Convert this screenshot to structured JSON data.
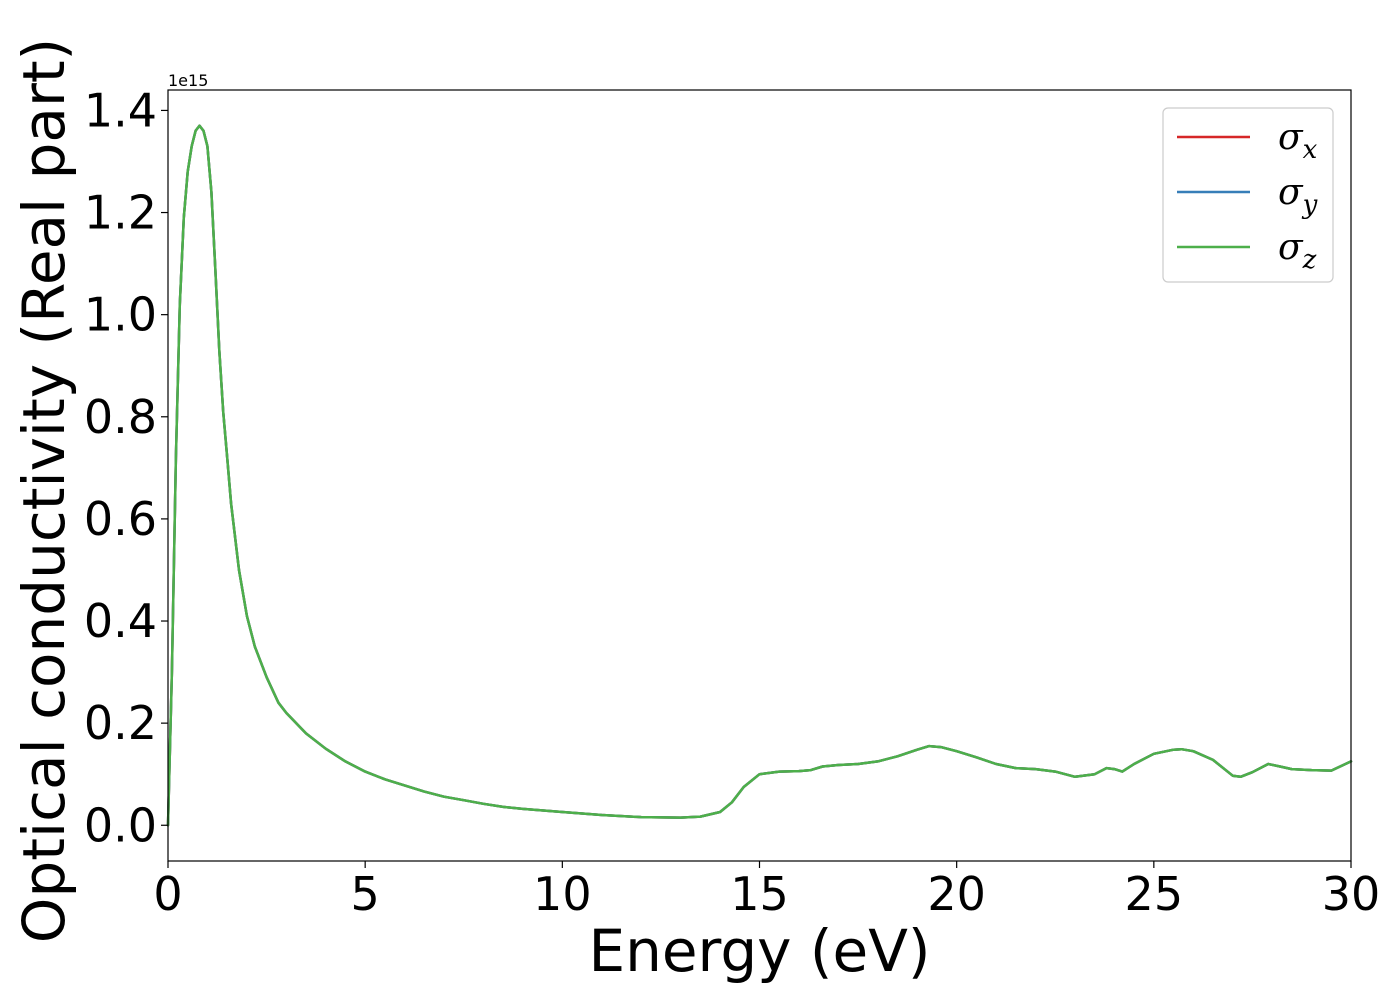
{
  "chart_data": {
    "type": "line",
    "xlabel": "Energy (eV)",
    "ylabel": "Optical conductivity (Real part)",
    "y_offset_label": "1e15",
    "y_scale_factor": 1000000000000000.0,
    "xlim": [
      0,
      30
    ],
    "ylim": [
      -0.07,
      1.44
    ],
    "xticks": [
      0,
      5,
      10,
      15,
      20,
      25,
      30
    ],
    "xtick_labels": [
      "0",
      "5",
      "10",
      "15",
      "20",
      "25",
      "30"
    ],
    "yticks": [
      0.0,
      0.2,
      0.4,
      0.6,
      0.8,
      1.0,
      1.2,
      1.4
    ],
    "ytick_labels": [
      "0.0",
      "0.2",
      "0.4",
      "0.6",
      "0.8",
      "1.0",
      "1.2",
      "1.4"
    ],
    "grid": false,
    "legend_position": "top-right",
    "x": [
      0,
      0.1,
      0.2,
      0.3,
      0.4,
      0.5,
      0.6,
      0.7,
      0.8,
      0.9,
      1.0,
      1.1,
      1.2,
      1.3,
      1.4,
      1.5,
      1.6,
      1.8,
      2.0,
      2.2,
      2.5,
      2.8,
      3.0,
      3.5,
      4.0,
      4.5,
      5.0,
      5.5,
      6.0,
      6.5,
      7.0,
      7.5,
      8.0,
      8.5,
      9.0,
      10.0,
      11.0,
      12.0,
      13.0,
      13.5,
      14.0,
      14.3,
      14.6,
      15.0,
      15.5,
      16.0,
      16.3,
      16.6,
      17.0,
      17.5,
      18.0,
      18.5,
      19.0,
      19.3,
      19.6,
      20.0,
      20.5,
      21.0,
      21.5,
      22.0,
      22.5,
      23.0,
      23.5,
      23.8,
      24.0,
      24.2,
      24.5,
      25.0,
      25.5,
      25.7,
      26.0,
      26.5,
      27.0,
      27.2,
      27.5,
      27.9,
      28.2,
      28.5,
      29.0,
      29.5,
      30.0
    ],
    "series": [
      {
        "name": "σ_x",
        "label_base": "σ",
        "label_sub": "x",
        "color": "#d62728",
        "y": [
          0.0,
          0.3,
          0.72,
          1.02,
          1.19,
          1.28,
          1.33,
          1.36,
          1.37,
          1.36,
          1.33,
          1.24,
          1.09,
          0.93,
          0.81,
          0.72,
          0.63,
          0.5,
          0.41,
          0.35,
          0.29,
          0.24,
          0.22,
          0.18,
          0.15,
          0.125,
          0.105,
          0.09,
          0.078,
          0.066,
          0.056,
          0.049,
          0.042,
          0.036,
          0.032,
          0.026,
          0.02,
          0.016,
          0.015,
          0.017,
          0.026,
          0.045,
          0.075,
          0.1,
          0.105,
          0.106,
          0.108,
          0.115,
          0.118,
          0.12,
          0.125,
          0.135,
          0.148,
          0.155,
          0.153,
          0.145,
          0.133,
          0.12,
          0.112,
          0.11,
          0.105,
          0.095,
          0.1,
          0.112,
          0.11,
          0.105,
          0.12,
          0.14,
          0.148,
          0.149,
          0.145,
          0.128,
          0.097,
          0.095,
          0.104,
          0.12,
          0.115,
          0.11,
          0.108,
          0.107,
          0.125
        ]
      },
      {
        "name": "σ_y",
        "label_base": "σ",
        "label_sub": "y",
        "color": "#377eb8",
        "y": [
          0.0,
          0.3,
          0.72,
          1.02,
          1.19,
          1.28,
          1.33,
          1.36,
          1.37,
          1.36,
          1.33,
          1.24,
          1.09,
          0.93,
          0.81,
          0.72,
          0.63,
          0.5,
          0.41,
          0.35,
          0.29,
          0.24,
          0.22,
          0.18,
          0.15,
          0.125,
          0.105,
          0.09,
          0.078,
          0.066,
          0.056,
          0.049,
          0.042,
          0.036,
          0.032,
          0.026,
          0.02,
          0.016,
          0.015,
          0.017,
          0.026,
          0.045,
          0.075,
          0.1,
          0.105,
          0.106,
          0.108,
          0.115,
          0.118,
          0.12,
          0.125,
          0.135,
          0.148,
          0.155,
          0.153,
          0.145,
          0.133,
          0.12,
          0.112,
          0.11,
          0.105,
          0.095,
          0.1,
          0.112,
          0.11,
          0.105,
          0.12,
          0.14,
          0.148,
          0.149,
          0.145,
          0.128,
          0.097,
          0.095,
          0.104,
          0.12,
          0.115,
          0.11,
          0.108,
          0.107,
          0.125
        ]
      },
      {
        "name": "σ_z",
        "label_base": "σ",
        "label_sub": "z",
        "color": "#4daf4a",
        "y": [
          0.0,
          0.3,
          0.72,
          1.02,
          1.19,
          1.28,
          1.33,
          1.36,
          1.37,
          1.36,
          1.33,
          1.24,
          1.09,
          0.93,
          0.81,
          0.72,
          0.63,
          0.5,
          0.41,
          0.35,
          0.29,
          0.24,
          0.22,
          0.18,
          0.15,
          0.125,
          0.105,
          0.09,
          0.078,
          0.066,
          0.056,
          0.049,
          0.042,
          0.036,
          0.032,
          0.026,
          0.02,
          0.016,
          0.015,
          0.017,
          0.026,
          0.045,
          0.075,
          0.1,
          0.105,
          0.106,
          0.108,
          0.115,
          0.118,
          0.12,
          0.125,
          0.135,
          0.148,
          0.155,
          0.153,
          0.145,
          0.133,
          0.12,
          0.112,
          0.11,
          0.105,
          0.095,
          0.1,
          0.112,
          0.11,
          0.105,
          0.12,
          0.14,
          0.148,
          0.149,
          0.145,
          0.128,
          0.097,
          0.095,
          0.104,
          0.12,
          0.115,
          0.11,
          0.108,
          0.107,
          0.125
        ]
      }
    ]
  }
}
